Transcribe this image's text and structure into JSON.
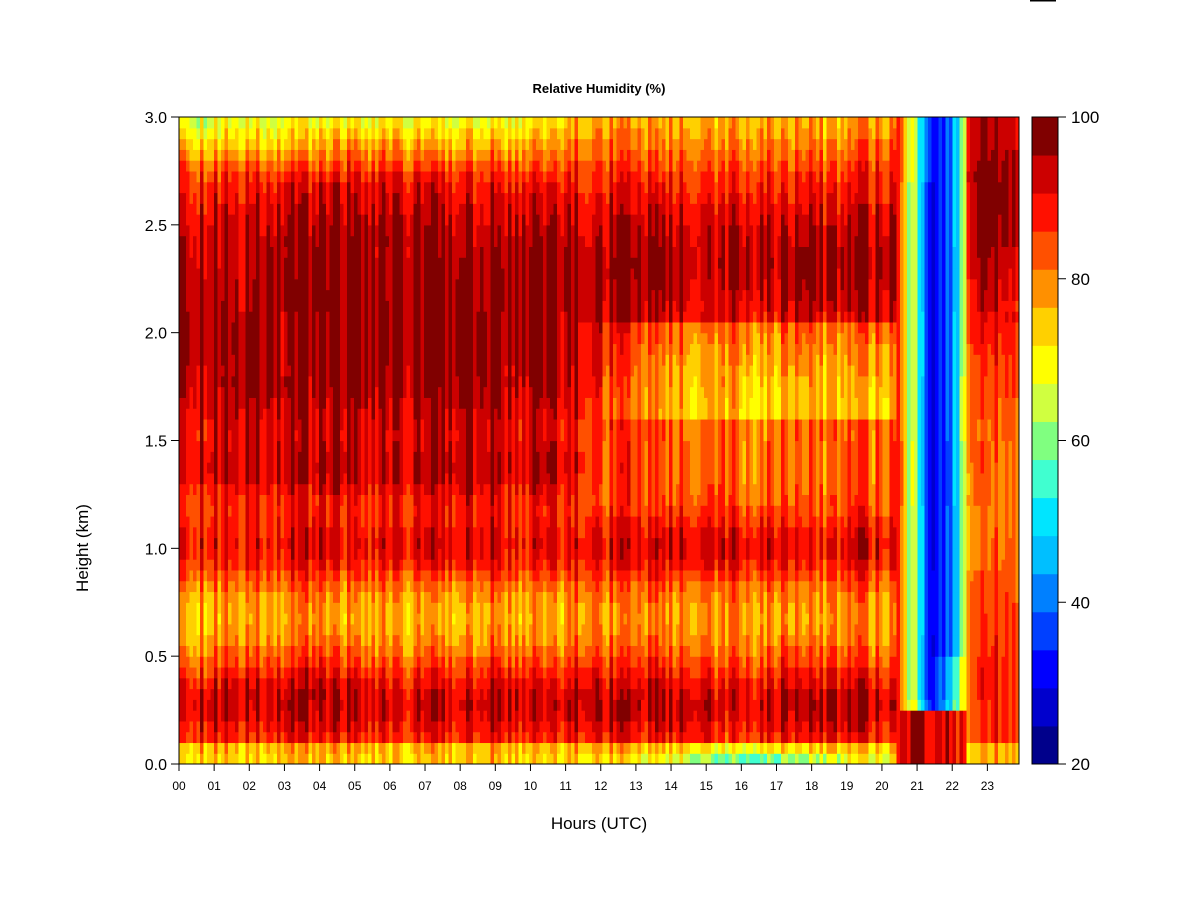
{
  "chart_data": {
    "type": "heatmap",
    "title": "Relative Humidity (%)",
    "xlabel": "Hours (UTC)",
    "ylabel": "Height (km)",
    "xlim": [
      0,
      23.9
    ],
    "ylim": [
      0,
      3.0
    ],
    "x_ticks": [
      "00",
      "01",
      "02",
      "03",
      "04",
      "05",
      "06",
      "07",
      "08",
      "09",
      "10",
      "11",
      "12",
      "13",
      "14",
      "15",
      "16",
      "17",
      "18",
      "19",
      "20",
      "21",
      "22",
      "23"
    ],
    "y_ticks": [
      "0.0",
      "0.5",
      "1.0",
      "1.5",
      "2.0",
      "2.5",
      "3.0"
    ],
    "colorbar": {
      "min": 20,
      "max": 100,
      "step": 5,
      "ticks": [
        "20",
        "40",
        "60",
        "80",
        "100"
      ],
      "colors": [
        "#00008b",
        "#0000cd",
        "#0000ff",
        "#0040ff",
        "#0080ff",
        "#00bfff",
        "#00e5ff",
        "#40ffd0",
        "#80ff80",
        "#d0ff40",
        "#ffff00",
        "#ffd000",
        "#ff9000",
        "#ff5000",
        "#ff1000",
        "#cc0000",
        "#800000"
      ]
    },
    "features": [
      {
        "region": "moist layer 0.1-0.5 km",
        "hours": [
          0,
          20.4
        ],
        "height_km": [
          0.1,
          0.5
        ],
        "rh": 98
      },
      {
        "region": "moist layer 0.9-1.1 km",
        "hours": [
          0,
          20.4
        ],
        "height_km": [
          0.9,
          1.1
        ],
        "rh": 96
      },
      {
        "region": "moist layer 2.0-2.7 km",
        "hours": [
          0,
          20.4
        ],
        "height_km": [
          2.0,
          2.7
        ],
        "rh": 99
      },
      {
        "region": "near-surface drying",
        "hours": [
          14,
          20
        ],
        "height_km": [
          0,
          0.1
        ],
        "rh": 65
      },
      {
        "region": "dry intrusion",
        "hours": [
          20.5,
          22.4
        ],
        "height_km": [
          0.3,
          3.0
        ],
        "rh": 30
      }
    ]
  }
}
